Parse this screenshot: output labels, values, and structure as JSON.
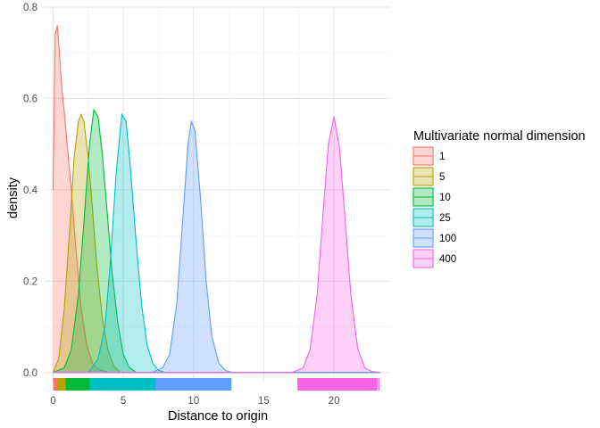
{
  "chart_data": {
    "type": "area",
    "title": "",
    "xlabel": "Distance to origin",
    "ylabel": "density",
    "xlim": [
      -0.6,
      24.0
    ],
    "ylim": [
      -0.02,
      0.8
    ],
    "x_ticks": [
      0,
      5,
      10,
      15,
      20
    ],
    "x_tick_labels": [
      "0",
      "5",
      "10",
      "15",
      "20"
    ],
    "y_ticks": [
      0.0,
      0.2,
      0.4,
      0.6,
      0.8
    ],
    "y_tick_labels": [
      "0.0",
      "0.2",
      "0.4",
      "0.6",
      "0.8"
    ],
    "grid": true,
    "rug": true,
    "legend": {
      "title": "Multivariate normal dimension",
      "position": "right"
    },
    "series": [
      {
        "name": "1",
        "color": "#F8766D",
        "x": [
          0.0,
          0.15,
          0.3,
          0.45,
          0.6,
          0.8,
          1.0,
          1.3,
          1.6,
          2.0,
          2.4,
          2.8,
          3.2,
          3.6,
          4.0,
          23.3
        ],
        "y": [
          0.4,
          0.74,
          0.76,
          0.7,
          0.63,
          0.57,
          0.5,
          0.4,
          0.28,
          0.14,
          0.06,
          0.02,
          0.008,
          0.003,
          0.0,
          0.0
        ]
      },
      {
        "name": "5",
        "color": "#B79F00",
        "x": [
          0.0,
          0.4,
          0.8,
          1.2,
          1.5,
          1.8,
          2.0,
          2.2,
          2.5,
          2.8,
          3.1,
          3.5,
          3.9,
          4.3,
          4.8,
          23.3
        ],
        "y": [
          0.0,
          0.03,
          0.14,
          0.32,
          0.47,
          0.55,
          0.565,
          0.55,
          0.47,
          0.36,
          0.24,
          0.12,
          0.05,
          0.015,
          0.0,
          0.0
        ]
      },
      {
        "name": "10",
        "color": "#00BA38",
        "x": [
          0.0,
          0.8,
          1.3,
          1.8,
          2.2,
          2.6,
          2.9,
          3.2,
          3.5,
          3.8,
          4.2,
          4.6,
          5.0,
          5.4,
          5.9,
          23.3
        ],
        "y": [
          0.0,
          0.01,
          0.05,
          0.17,
          0.33,
          0.5,
          0.575,
          0.56,
          0.48,
          0.37,
          0.22,
          0.11,
          0.04,
          0.012,
          0.0,
          0.0
        ]
      },
      {
        "name": "25",
        "color": "#00BFC4",
        "x": [
          0.0,
          2.5,
          3.2,
          3.7,
          4.1,
          4.5,
          4.9,
          5.2,
          5.5,
          5.9,
          6.3,
          6.7,
          7.1,
          7.5,
          8.0,
          23.3
        ],
        "y": [
          0.0,
          0.0,
          0.03,
          0.1,
          0.25,
          0.44,
          0.565,
          0.55,
          0.45,
          0.29,
          0.15,
          0.06,
          0.02,
          0.005,
          0.0,
          0.0
        ]
      },
      {
        "name": "100",
        "color": "#619CFF",
        "x": [
          0.0,
          7.0,
          7.8,
          8.3,
          8.8,
          9.2,
          9.6,
          9.85,
          10.1,
          10.5,
          10.9,
          11.3,
          11.8,
          12.3,
          12.8,
          23.3
        ],
        "y": [
          0.0,
          0.0,
          0.01,
          0.04,
          0.15,
          0.32,
          0.5,
          0.55,
          0.53,
          0.38,
          0.2,
          0.08,
          0.02,
          0.004,
          0.0,
          0.0
        ]
      },
      {
        "name": "400",
        "color": "#F564E3",
        "x": [
          0.0,
          17.0,
          17.8,
          18.3,
          18.8,
          19.2,
          19.6,
          20.0,
          20.4,
          20.8,
          21.2,
          21.7,
          22.2,
          22.7,
          23.3
        ],
        "y": [
          0.0,
          0.0,
          0.01,
          0.05,
          0.17,
          0.34,
          0.5,
          0.56,
          0.49,
          0.33,
          0.17,
          0.05,
          0.01,
          0.002,
          0.0
        ]
      }
    ],
    "rug_ranges": [
      {
        "name": "1",
        "from": 0.0,
        "to": 3.8
      },
      {
        "name": "5",
        "from": 0.3,
        "to": 4.5
      },
      {
        "name": "10",
        "from": 0.9,
        "to": 5.5
      },
      {
        "name": "25",
        "from": 2.6,
        "to": 7.7
      },
      {
        "name": "100",
        "from": 7.3,
        "to": 12.7
      },
      {
        "name": "400",
        "from": 17.4,
        "to": 23.1
      }
    ]
  }
}
